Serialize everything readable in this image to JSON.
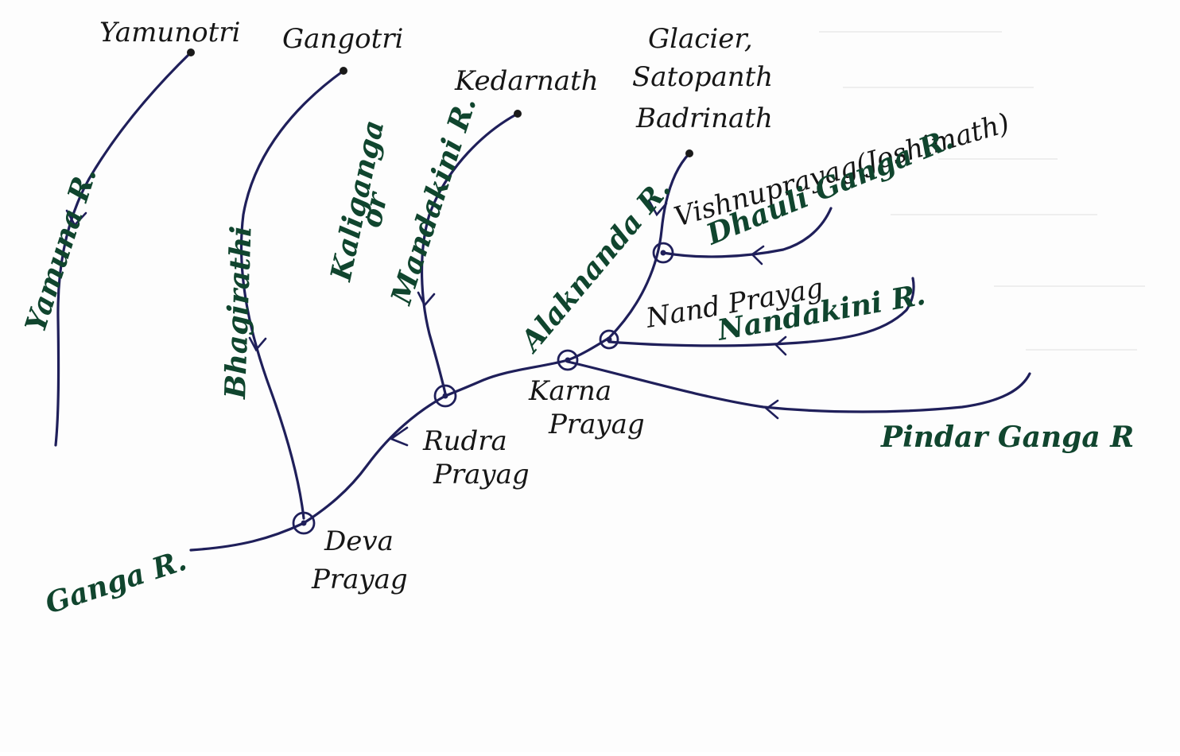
{
  "places": {
    "yamunotri": "Yamunotri",
    "gangotri": "Gangotri",
    "kedarnath": "Kedarnath",
    "glacier_line1": "Glacier,",
    "glacier_line2": "Satopanth",
    "glacier_line3": "Badrinath",
    "vishnuprayag": "Vishnuprayag(Joshimath)",
    "nand_prayag": "Nand Prayag",
    "karna_line1": "Karna",
    "karna_line2": "Prayag",
    "rudra_line1": "Rudra",
    "rudra_line2": "Prayag",
    "deva_line1": "Deva",
    "deva_line2": "Prayag"
  },
  "rivers": {
    "yamuna": "Yamuna R.",
    "bhagirathi": "Bhagirathi",
    "kaliganga_line1": "Kaliganga",
    "kaliganga_or": "or",
    "kaliganga_line2": "Mandakini R.",
    "alaknanda": "Alaknanda R.",
    "dhauli_ganga": "Dhauli Ganga R.",
    "nandakini": "Nandakini R.",
    "pindar_ganga": "Pindar Ganga R",
    "ganga": "Ganga R."
  },
  "colors": {
    "ink_river": "#1f1f5a",
    "ink_place": "#161616",
    "ink_river_label": "#10452e"
  }
}
